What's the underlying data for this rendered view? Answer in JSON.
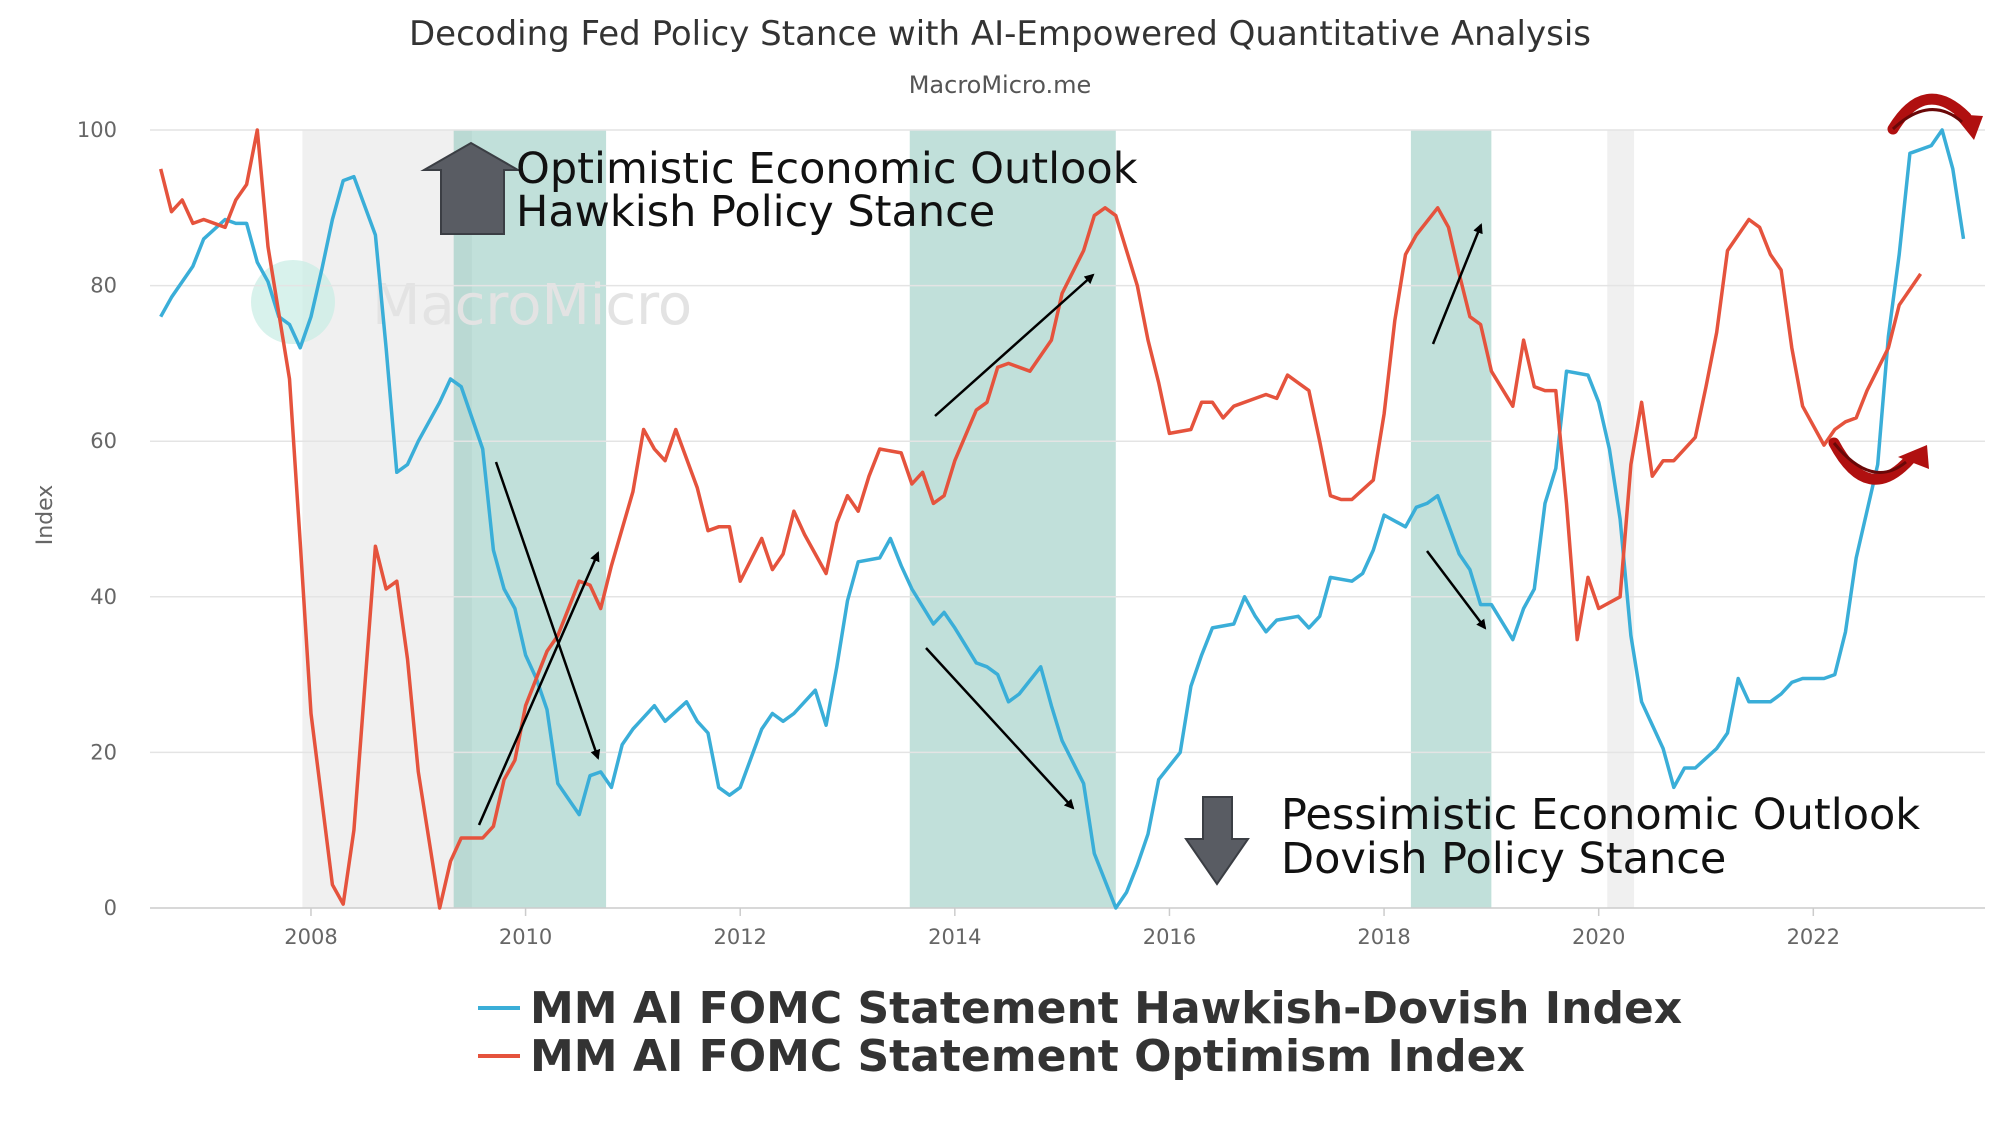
{
  "chart_data": {
    "type": "line",
    "title": "Decoding Fed Policy Stance with AI-Empowered Quantitative Analysis",
    "subtitle": "MacroMicro.me",
    "watermark": "MacroMicro",
    "ylabel": "Index",
    "xlabel": "",
    "xlim": [
      2006.5,
      2023.6
    ],
    "ylim": [
      0,
      100
    ],
    "x_ticks": [
      2008,
      2010,
      2012,
      2014,
      2016,
      2018,
      2020,
      2022
    ],
    "y_ticks": [
      0,
      20,
      40,
      60,
      80,
      100
    ],
    "grid": "horizontal",
    "legend_position": "bottom",
    "recessions": [
      [
        2007.92,
        2009.5
      ],
      [
        2020.08,
        2020.33
      ]
    ],
    "highlight_periods": [
      [
        2009.33,
        2010.75
      ],
      [
        2013.58,
        2015.5
      ],
      [
        2018.25,
        2019.0
      ]
    ],
    "series": [
      {
        "name": "MM AI FOMC Statement Hawkish-Dovish Index",
        "color": "#3aaed8",
        "points": [
          [
            2006.6,
            76
          ],
          [
            2006.7,
            78.5
          ],
          [
            2006.9,
            82.5
          ],
          [
            2007.0,
            86
          ],
          [
            2007.2,
            88.5
          ],
          [
            2007.3,
            88
          ],
          [
            2007.4,
            88
          ],
          [
            2007.5,
            83
          ],
          [
            2007.6,
            80.5
          ],
          [
            2007.7,
            76
          ],
          [
            2007.8,
            75
          ],
          [
            2007.9,
            72
          ],
          [
            2008.0,
            76
          ],
          [
            2008.1,
            82
          ],
          [
            2008.2,
            88.5
          ],
          [
            2008.3,
            93.5
          ],
          [
            2008.4,
            94
          ],
          [
            2008.6,
            86.5
          ],
          [
            2008.7,
            72
          ],
          [
            2008.8,
            56
          ],
          [
            2008.9,
            57
          ],
          [
            2009.0,
            60
          ],
          [
            2009.2,
            65
          ],
          [
            2009.3,
            68
          ],
          [
            2009.4,
            67
          ],
          [
            2009.6,
            59
          ],
          [
            2009.7,
            46
          ],
          [
            2009.8,
            41
          ],
          [
            2009.9,
            38.5
          ],
          [
            2010.0,
            32.5
          ],
          [
            2010.1,
            29.5
          ],
          [
            2010.2,
            25.5
          ],
          [
            2010.3,
            16
          ],
          [
            2010.5,
            12
          ],
          [
            2010.6,
            17
          ],
          [
            2010.7,
            17.5
          ],
          [
            2010.8,
            15.5
          ],
          [
            2010.9,
            21
          ],
          [
            2011.0,
            23
          ],
          [
            2011.2,
            26
          ],
          [
            2011.3,
            24
          ],
          [
            2011.5,
            26.5
          ],
          [
            2011.6,
            24
          ],
          [
            2011.7,
            22.5
          ],
          [
            2011.8,
            15.5
          ],
          [
            2011.9,
            14.5
          ],
          [
            2012.0,
            15.5
          ],
          [
            2012.2,
            23
          ],
          [
            2012.3,
            25
          ],
          [
            2012.4,
            24
          ],
          [
            2012.5,
            25
          ],
          [
            2012.7,
            28
          ],
          [
            2012.8,
            23.5
          ],
          [
            2012.9,
            31
          ],
          [
            2013.0,
            39.5
          ],
          [
            2013.1,
            44.5
          ],
          [
            2013.3,
            45
          ],
          [
            2013.4,
            47.5
          ],
          [
            2013.5,
            44
          ],
          [
            2013.6,
            41
          ],
          [
            2013.8,
            36.5
          ],
          [
            2013.9,
            38
          ],
          [
            2014.0,
            36
          ],
          [
            2014.2,
            31.5
          ],
          [
            2014.3,
            31
          ],
          [
            2014.4,
            30
          ],
          [
            2014.5,
            26.5
          ],
          [
            2014.6,
            27.5
          ],
          [
            2014.8,
            31
          ],
          [
            2014.9,
            26
          ],
          [
            2015.0,
            21.5
          ],
          [
            2015.2,
            16
          ],
          [
            2015.3,
            7
          ],
          [
            2015.5,
            0
          ],
          [
            2015.6,
            2
          ],
          [
            2015.7,
            5.5
          ],
          [
            2015.8,
            9.5
          ],
          [
            2015.9,
            16.5
          ],
          [
            2016.1,
            20
          ],
          [
            2016.2,
            28.5
          ],
          [
            2016.3,
            32.5
          ],
          [
            2016.4,
            36
          ],
          [
            2016.6,
            36.5
          ],
          [
            2016.7,
            40
          ],
          [
            2016.8,
            37.5
          ],
          [
            2016.9,
            35.5
          ],
          [
            2017.0,
            37
          ],
          [
            2017.2,
            37.5
          ],
          [
            2017.3,
            36
          ],
          [
            2017.4,
            37.5
          ],
          [
            2017.5,
            42.5
          ],
          [
            2017.7,
            42
          ],
          [
            2017.8,
            43
          ],
          [
            2017.9,
            46
          ],
          [
            2018.0,
            50.5
          ],
          [
            2018.2,
            49
          ],
          [
            2018.3,
            51.5
          ],
          [
            2018.4,
            52
          ],
          [
            2018.5,
            53
          ],
          [
            2018.7,
            45.5
          ],
          [
            2018.8,
            43.5
          ],
          [
            2018.9,
            39
          ],
          [
            2019.0,
            39
          ],
          [
            2019.2,
            34.5
          ],
          [
            2019.3,
            38.5
          ],
          [
            2019.4,
            41
          ],
          [
            2019.5,
            52
          ],
          [
            2019.6,
            56.5
          ],
          [
            2019.7,
            69
          ],
          [
            2019.9,
            68.5
          ],
          [
            2020.0,
            65
          ],
          [
            2020.1,
            59
          ],
          [
            2020.2,
            50
          ],
          [
            2020.3,
            35
          ],
          [
            2020.4,
            26.5
          ],
          [
            2020.6,
            20.5
          ],
          [
            2020.7,
            15.5
          ],
          [
            2020.8,
            18
          ],
          [
            2020.9,
            18
          ],
          [
            2021.1,
            20.5
          ],
          [
            2021.2,
            22.5
          ],
          [
            2021.3,
            29.5
          ],
          [
            2021.4,
            26.5
          ],
          [
            2021.6,
            26.5
          ],
          [
            2021.7,
            27.5
          ],
          [
            2021.8,
            29
          ],
          [
            2021.9,
            29.5
          ],
          [
            2022.1,
            29.5
          ],
          [
            2022.2,
            30
          ],
          [
            2022.3,
            35.5
          ],
          [
            2022.4,
            45
          ],
          [
            2022.6,
            57
          ],
          [
            2022.7,
            73.5
          ],
          [
            2022.8,
            84
          ],
          [
            2022.9,
            97
          ],
          [
            2023.1,
            98
          ],
          [
            2023.2,
            100
          ],
          [
            2023.3,
            95
          ],
          [
            2023.4,
            86
          ]
        ]
      },
      {
        "name": "MM AI FOMC Statement Optimism Index",
        "color": "#e5533d",
        "points": [
          [
            2006.6,
            95
          ],
          [
            2006.7,
            89.5
          ],
          [
            2006.8,
            91
          ],
          [
            2006.9,
            88
          ],
          [
            2007.0,
            88.5
          ],
          [
            2007.2,
            87.5
          ],
          [
            2007.3,
            91
          ],
          [
            2007.4,
            93
          ],
          [
            2007.5,
            100
          ],
          [
            2007.6,
            85
          ],
          [
            2007.8,
            68
          ],
          [
            2007.9,
            47
          ],
          [
            2008.0,
            25
          ],
          [
            2008.2,
            3
          ],
          [
            2008.3,
            0.5
          ],
          [
            2008.4,
            10
          ],
          [
            2008.6,
            46.5
          ],
          [
            2008.7,
            41
          ],
          [
            2008.8,
            42
          ],
          [
            2008.9,
            32
          ],
          [
            2009.0,
            17.5
          ],
          [
            2009.2,
            0
          ],
          [
            2009.3,
            6
          ],
          [
            2009.4,
            9
          ],
          [
            2009.6,
            9
          ],
          [
            2009.7,
            10.5
          ],
          [
            2009.8,
            16.5
          ],
          [
            2009.9,
            19
          ],
          [
            2010.0,
            26
          ],
          [
            2010.2,
            33
          ],
          [
            2010.3,
            35
          ],
          [
            2010.4,
            38.5
          ],
          [
            2010.5,
            42
          ],
          [
            2010.6,
            41.5
          ],
          [
            2010.7,
            38.5
          ],
          [
            2010.8,
            44
          ],
          [
            2011.0,
            53.5
          ],
          [
            2011.1,
            61.5
          ],
          [
            2011.2,
            59
          ],
          [
            2011.3,
            57.5
          ],
          [
            2011.4,
            61.5
          ],
          [
            2011.6,
            54
          ],
          [
            2011.7,
            48.5
          ],
          [
            2011.8,
            49
          ],
          [
            2011.9,
            49
          ],
          [
            2012.0,
            42
          ],
          [
            2012.2,
            47.5
          ],
          [
            2012.3,
            43.5
          ],
          [
            2012.4,
            45.5
          ],
          [
            2012.5,
            51
          ],
          [
            2012.6,
            48
          ],
          [
            2012.8,
            43
          ],
          [
            2012.9,
            49.5
          ],
          [
            2013.0,
            53
          ],
          [
            2013.1,
            51
          ],
          [
            2013.2,
            55.5
          ],
          [
            2013.3,
            59
          ],
          [
            2013.5,
            58.5
          ],
          [
            2013.6,
            54.5
          ],
          [
            2013.7,
            56
          ],
          [
            2013.8,
            52
          ],
          [
            2013.9,
            53
          ],
          [
            2014.0,
            57.5
          ],
          [
            2014.2,
            64
          ],
          [
            2014.3,
            65
          ],
          [
            2014.4,
            69.5
          ],
          [
            2014.5,
            70
          ],
          [
            2014.7,
            69
          ],
          [
            2014.8,
            71
          ],
          [
            2014.9,
            73
          ],
          [
            2015.0,
            79
          ],
          [
            2015.2,
            84.5
          ],
          [
            2015.3,
            89
          ],
          [
            2015.4,
            90
          ],
          [
            2015.5,
            89
          ],
          [
            2015.7,
            80
          ],
          [
            2015.8,
            73
          ],
          [
            2015.9,
            67.5
          ],
          [
            2016.0,
            61
          ],
          [
            2016.2,
            61.5
          ],
          [
            2016.3,
            65
          ],
          [
            2016.4,
            65
          ],
          [
            2016.5,
            63
          ],
          [
            2016.6,
            64.5
          ],
          [
            2016.8,
            65.5
          ],
          [
            2016.9,
            66
          ],
          [
            2017.0,
            65.5
          ],
          [
            2017.1,
            68.5
          ],
          [
            2017.3,
            66.5
          ],
          [
            2017.4,
            60
          ],
          [
            2017.5,
            53
          ],
          [
            2017.6,
            52.5
          ],
          [
            2017.7,
            52.5
          ],
          [
            2017.9,
            55
          ],
          [
            2018.0,
            63.5
          ],
          [
            2018.1,
            75.5
          ],
          [
            2018.2,
            84
          ],
          [
            2018.3,
            86.5
          ],
          [
            2018.5,
            90
          ],
          [
            2018.6,
            87.5
          ],
          [
            2018.7,
            81.5
          ],
          [
            2018.8,
            76
          ],
          [
            2018.9,
            75
          ],
          [
            2019.0,
            69
          ],
          [
            2019.2,
            64.5
          ],
          [
            2019.3,
            73
          ],
          [
            2019.4,
            67
          ],
          [
            2019.5,
            66.5
          ],
          [
            2019.6,
            66.5
          ],
          [
            2019.7,
            52
          ],
          [
            2019.8,
            34.5
          ],
          [
            2019.9,
            42.5
          ],
          [
            2020.0,
            38.5
          ],
          [
            2020.2,
            40
          ],
          [
            2020.3,
            57
          ],
          [
            2020.4,
            65
          ],
          [
            2020.5,
            55.5
          ],
          [
            2020.6,
            57.5
          ],
          [
            2020.7,
            57.5
          ],
          [
            2020.9,
            60.5
          ],
          [
            2021.0,
            67
          ],
          [
            2021.1,
            74
          ],
          [
            2021.2,
            84.5
          ],
          [
            2021.4,
            88.5
          ],
          [
            2021.5,
            87.5
          ],
          [
            2021.6,
            84
          ],
          [
            2021.7,
            82
          ],
          [
            2021.8,
            72
          ],
          [
            2021.9,
            64.5
          ],
          [
            2022.1,
            59.5
          ],
          [
            2022.2,
            61.5
          ],
          [
            2022.3,
            62.5
          ],
          [
            2022.4,
            63
          ],
          [
            2022.5,
            66.5
          ],
          [
            2022.7,
            72
          ],
          [
            2022.8,
            77.5
          ],
          [
            2022.9,
            79.5
          ],
          [
            2023.0,
            81.5
          ]
        ]
      }
    ],
    "annotations": {
      "top_line1": "Optimistic Economic Outlook",
      "top_line2": "Hawkish Policy Stance",
      "bottom_line1": "Pessimistic Economic Outlook",
      "bottom_line2": "Dovish Policy Stance"
    }
  }
}
